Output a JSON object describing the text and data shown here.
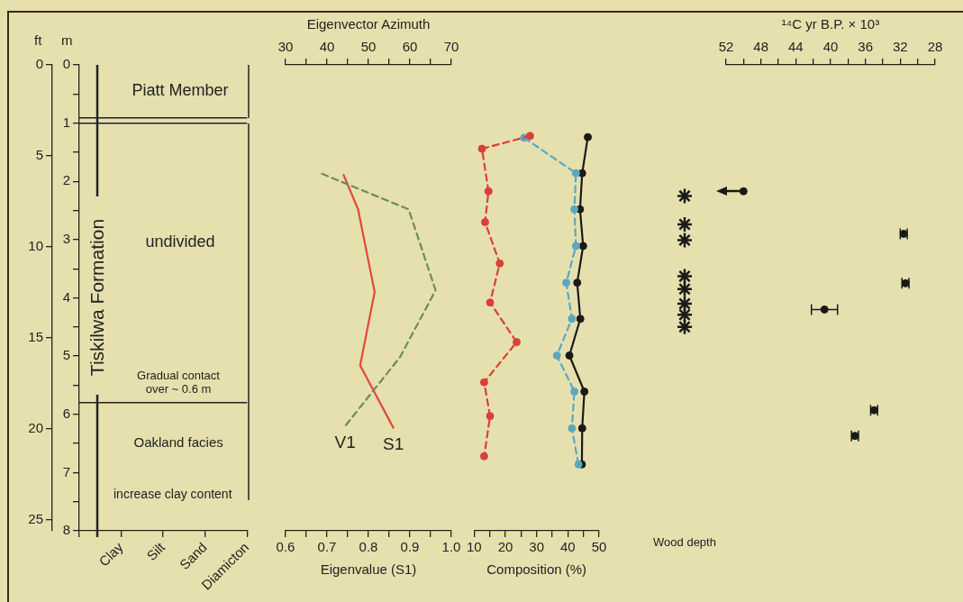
{
  "chart_data": [
    {
      "type": "line",
      "ref_lines": [
        {
          "axis": "y",
          "value": 0.91
        },
        {
          "axis": "y",
          "value": 1.0
        },
        {
          "axis": "y",
          "value": 5.8
        }
      ],
      "ylabel": "m",
      "y2label": "ft",
      "categories": [
        null,
        "Clay",
        "Silt",
        "Sand",
        "Diamicton"
      ],
      "ylim": [
        8,
        0
      ],
      "yticks": [
        0,
        {
          "value": 0.5,
          "label": null
        },
        1,
        {
          "value": 1.5,
          "label": null
        },
        2,
        {
          "value": 2.5,
          "label": null
        },
        3,
        {
          "value": 3.5,
          "label": null
        },
        4,
        {
          "value": 4.5,
          "label": null
        },
        5,
        {
          "value": 5.5,
          "label": null
        },
        6,
        {
          "value": 6.5,
          "label": null
        },
        7,
        {
          "value": 7.5,
          "label": null
        },
        8
      ],
      "y2lim": [
        25.6,
        0
      ],
      "y2ticks": [
        0,
        5,
        10,
        15,
        20,
        25
      ],
      "annotations": [
        "Piatt Member",
        "Tiskilwa Formation",
        "undivided",
        "Gradual contact over ~ 0.6 m",
        "Oakland facies",
        "increase clay content"
      ]
    },
    {
      "type": "line",
      "xlabel": "Eigenvalue (S1)",
      "x2label": "Eigenvector Azimuth",
      "xlim": [
        0.6,
        1.0
      ],
      "xticks": [
        0.6,
        {
          "value": 0.65,
          "label": null
        },
        0.7,
        {
          "value": 0.75,
          "label": null
        },
        0.8,
        {
          "value": 0.85,
          "label": null
        },
        0.9,
        {
          "value": 0.95,
          "label": null
        },
        {
          "value": 1,
          "label": "1.0"
        }
      ],
      "x2lim": [
        30,
        70
      ],
      "x2ticks": [
        30,
        {
          "value": 35,
          "label": null
        },
        40,
        {
          "value": 45,
          "label": null
        },
        50,
        {
          "value": 55,
          "label": null
        },
        60,
        {
          "value": 65,
          "label": null
        },
        70
      ],
      "ylim": [
        8,
        0
      ],
      "tick_labels": "x",
      "marker": "none",
      "series": [
        {
          "name": "V1",
          "color": "#6b8c5c",
          "line_style": "dashed",
          "axis": "x2",
          "x": [
            38.8,
            59.7,
            66.2,
            57.6,
            44.4
          ],
          "values": [
            1.87,
            2.48,
            3.87,
            5.02,
            6.2
          ]
        },
        {
          "name": "S1",
          "color": "#e04a3c",
          "line_style": "solid",
          "x": [
            0.74,
            0.775,
            0.815,
            0.78,
            0.86
          ],
          "values": [
            1.89,
            2.48,
            3.9,
            5.16,
            6.23
          ]
        }
      ]
    },
    {
      "type": "line",
      "xlabel": "Composition (%)",
      "xlim": [
        10,
        50
      ],
      "xticks": [
        10,
        {
          "value": 15,
          "label": null
        },
        20,
        {
          "value": 25,
          "label": null
        },
        30,
        {
          "value": 35,
          "label": null
        },
        40,
        {
          "value": 45,
          "label": null
        },
        50
      ],
      "ylim": [
        8,
        0
      ],
      "tick_labels": "x",
      "marker": "circle",
      "series": [
        {
          "color": "#d9403a",
          "line_style": "dashed",
          "x": [
            27.9,
            12.5,
            14.6,
            13.5,
            18.2,
            15.1,
            23.6,
            13.2,
            15.1,
            13.2
          ],
          "values": [
            1.22,
            1.44,
            2.17,
            2.7,
            3.41,
            4.08,
            4.76,
            5.45,
            6.03,
            6.72
          ]
        },
        {
          "color": "#5aa8c0",
          "line_style": "dashed",
          "x": [
            26,
            42.6,
            42.1,
            42.6,
            39.5,
            41.3,
            36.5,
            42.1,
            41.3,
            43.4
          ],
          "values": [
            1.25,
            1.86,
            2.48,
            3.11,
            3.74,
            4.36,
            4.99,
            5.61,
            6.24,
            6.86
          ]
        },
        {
          "color": "#1a1a1a",
          "line_style": "solid",
          "x": [
            46.4,
            44.6,
            43.9,
            44.9,
            43,
            44,
            40.5,
            45.3,
            44.6,
            44.5
          ],
          "values": [
            1.24,
            1.86,
            2.48,
            3.11,
            3.74,
            4.36,
            4.99,
            5.61,
            6.24,
            6.86
          ]
        }
      ]
    },
    {
      "type": "scatter",
      "categories": [
        "Wood depth"
      ],
      "ylim": [
        8,
        0
      ],
      "tick_labels": "x",
      "marker": "cross",
      "series": [
        {
          "color": "#1a1a1a",
          "x": [
            "Wood depth",
            "Wood depth",
            "Wood depth",
            "Wood depth",
            "Wood depth",
            "Wood depth",
            "Wood depth",
            "Wood depth"
          ],
          "values": [
            2.25,
            2.74,
            3.01,
            3.63,
            3.85,
            4.1,
            4.29,
            4.5
          ]
        }
      ]
    },
    {
      "type": "scatter",
      "xlabel": "¹⁴C yr B.P. × 10³",
      "xlim": [
        52,
        28
      ],
      "xticks": [
        52,
        {
          "value": 50,
          "label": null
        },
        48,
        {
          "value": 46,
          "label": null
        },
        44,
        {
          "value": 42,
          "label": null
        },
        40,
        {
          "value": 38,
          "label": null
        },
        36,
        {
          "value": 34,
          "label": null
        },
        32,
        {
          "value": 30,
          "label": null
        },
        28
      ],
      "ylim": [
        8,
        0
      ],
      "tick_labels": "x",
      "marker": "circle",
      "series": [
        {
          "color": "#1a1a1a",
          "x": [
            50,
            31.6,
            31.4,
            40.7,
            35,
            37.2
          ],
          "values": [
            2.17,
            2.9,
            3.75,
            4.2,
            5.93,
            6.37
          ],
          "xerrors": [
            null,
            0.4,
            0.4,
            1.5,
            0.4,
            0.4
          ]
        }
      ]
    }
  ]
}
